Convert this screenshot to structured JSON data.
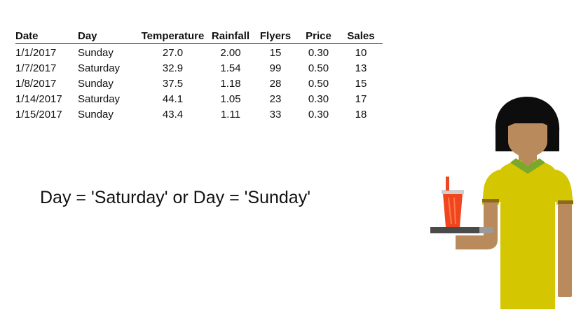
{
  "table": {
    "columns": [
      "Date",
      "Day",
      "Temperature",
      "Rainfall",
      "Flyers",
      "Price",
      "Sales"
    ],
    "rows": [
      [
        "1/1/2017",
        "Sunday",
        "27.0",
        "2.00",
        "15",
        "0.30",
        "10"
      ],
      [
        "1/7/2017",
        "Saturday",
        "32.9",
        "1.54",
        "99",
        "0.50",
        "13"
      ],
      [
        "1/8/2017",
        "Sunday",
        "37.5",
        "1.18",
        "28",
        "0.50",
        "15"
      ],
      [
        "1/14/2017",
        "Saturday",
        "44.1",
        "1.05",
        "23",
        "0.30",
        "17"
      ],
      [
        "1/15/2017",
        "Sunday",
        "43.4",
        "1.11",
        "33",
        "0.30",
        "18"
      ]
    ]
  },
  "formula": "Day = 'Saturday' or Day = 'Sunday'",
  "illustration": {
    "icon": "vendor-woman-with-drink-tray-icon",
    "colors": {
      "shirt": "#d4c600",
      "skin": "#b88a5c",
      "hair": "#0d0d0d",
      "collar": "#7aa82a",
      "cup": "#f0451f",
      "tray": "#4a4a4a"
    }
  }
}
